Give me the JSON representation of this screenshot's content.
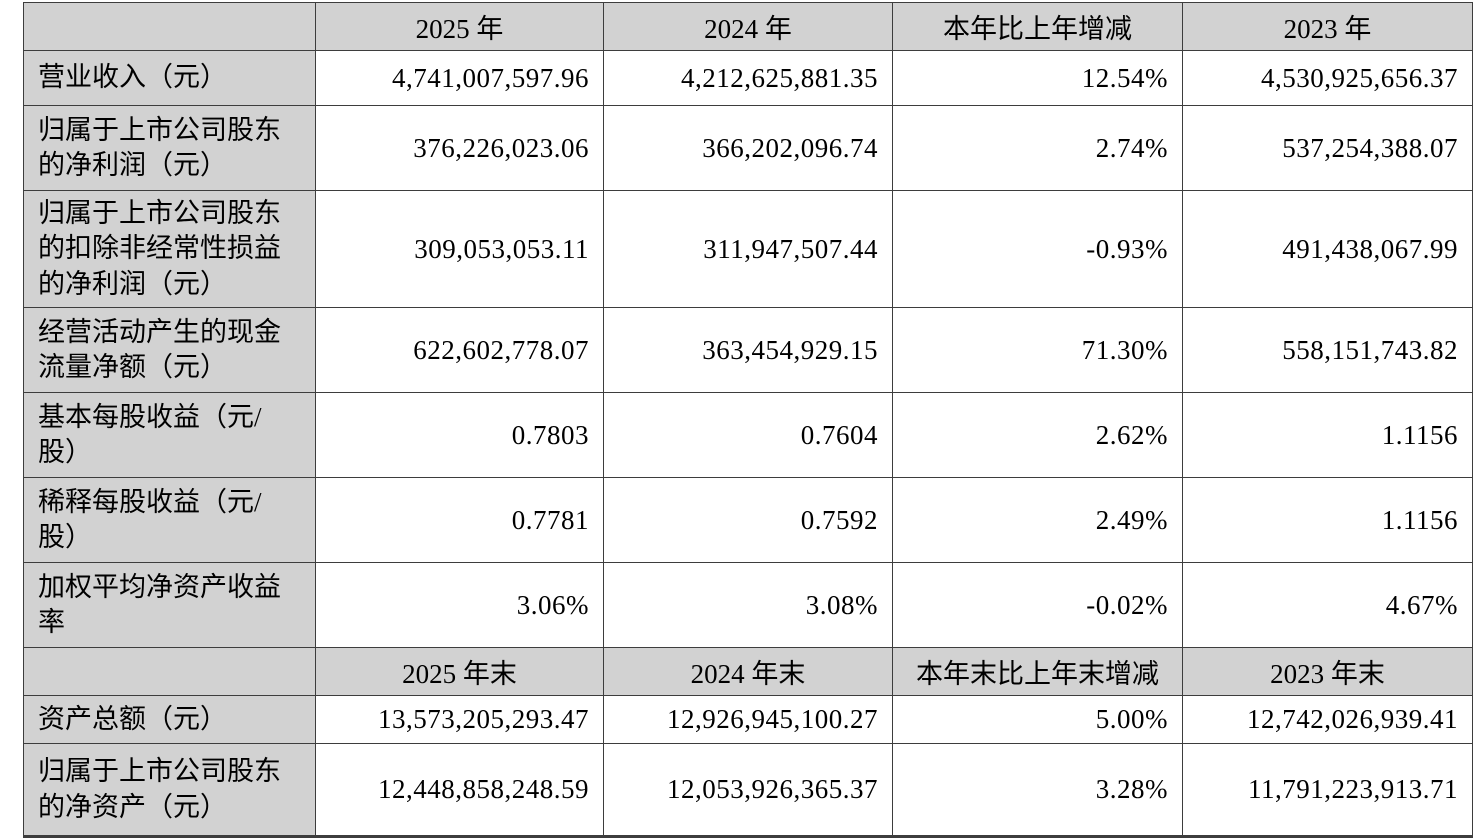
{
  "table": {
    "description_colors": {
      "header_background": "#d2d2d2",
      "label_column_background": "#d2d2d2",
      "cell_background": "#ffffff",
      "border": "#3d3d3d",
      "text": "#000000"
    },
    "sections": [
      {
        "header": [
          "",
          "2025 年",
          "2024 年",
          "本年比上年增减",
          "2023 年"
        ],
        "rows": [
          {
            "label": "营业收入（元）",
            "values": [
              "4,741,007,597.96",
              "4,212,625,881.35",
              "12.54%",
              "4,530,925,656.37"
            ]
          },
          {
            "label": "归属于上市公司股东的净利润（元）",
            "values": [
              "376,226,023.06",
              "366,202,096.74",
              "2.74%",
              "537,254,388.07"
            ]
          },
          {
            "label": "归属于上市公司股东的扣除非经常性损益的净利润（元）",
            "values": [
              "309,053,053.11",
              "311,947,507.44",
              "-0.93%",
              "491,438,067.99"
            ]
          },
          {
            "label": "经营活动产生的现金流量净额（元）",
            "values": [
              "622,602,778.07",
              "363,454,929.15",
              "71.30%",
              "558,151,743.82"
            ]
          },
          {
            "label": "基本每股收益（元/股）",
            "values": [
              "0.7803",
              "0.7604",
              "2.62%",
              "1.1156"
            ]
          },
          {
            "label": "稀释每股收益（元/股）",
            "values": [
              "0.7781",
              "0.7592",
              "2.49%",
              "1.1156"
            ]
          },
          {
            "label": "加权平均净资产收益率",
            "values": [
              "3.06%",
              "3.08%",
              "-0.02%",
              "4.67%"
            ]
          }
        ]
      },
      {
        "header": [
          "",
          "2025 年末",
          "2024 年末",
          "本年末比上年末增减",
          "2023 年末"
        ],
        "rows": [
          {
            "label": "资产总额（元）",
            "values": [
              "13,573,205,293.47",
              "12,926,945,100.27",
              "5.00%",
              "12,742,026,939.41"
            ]
          },
          {
            "label": "归属于上市公司股东的净资产（元）",
            "values": [
              "12,448,858,248.59",
              "12,053,926,365.37",
              "3.28%",
              "11,791,223,913.71"
            ]
          }
        ]
      }
    ]
  }
}
